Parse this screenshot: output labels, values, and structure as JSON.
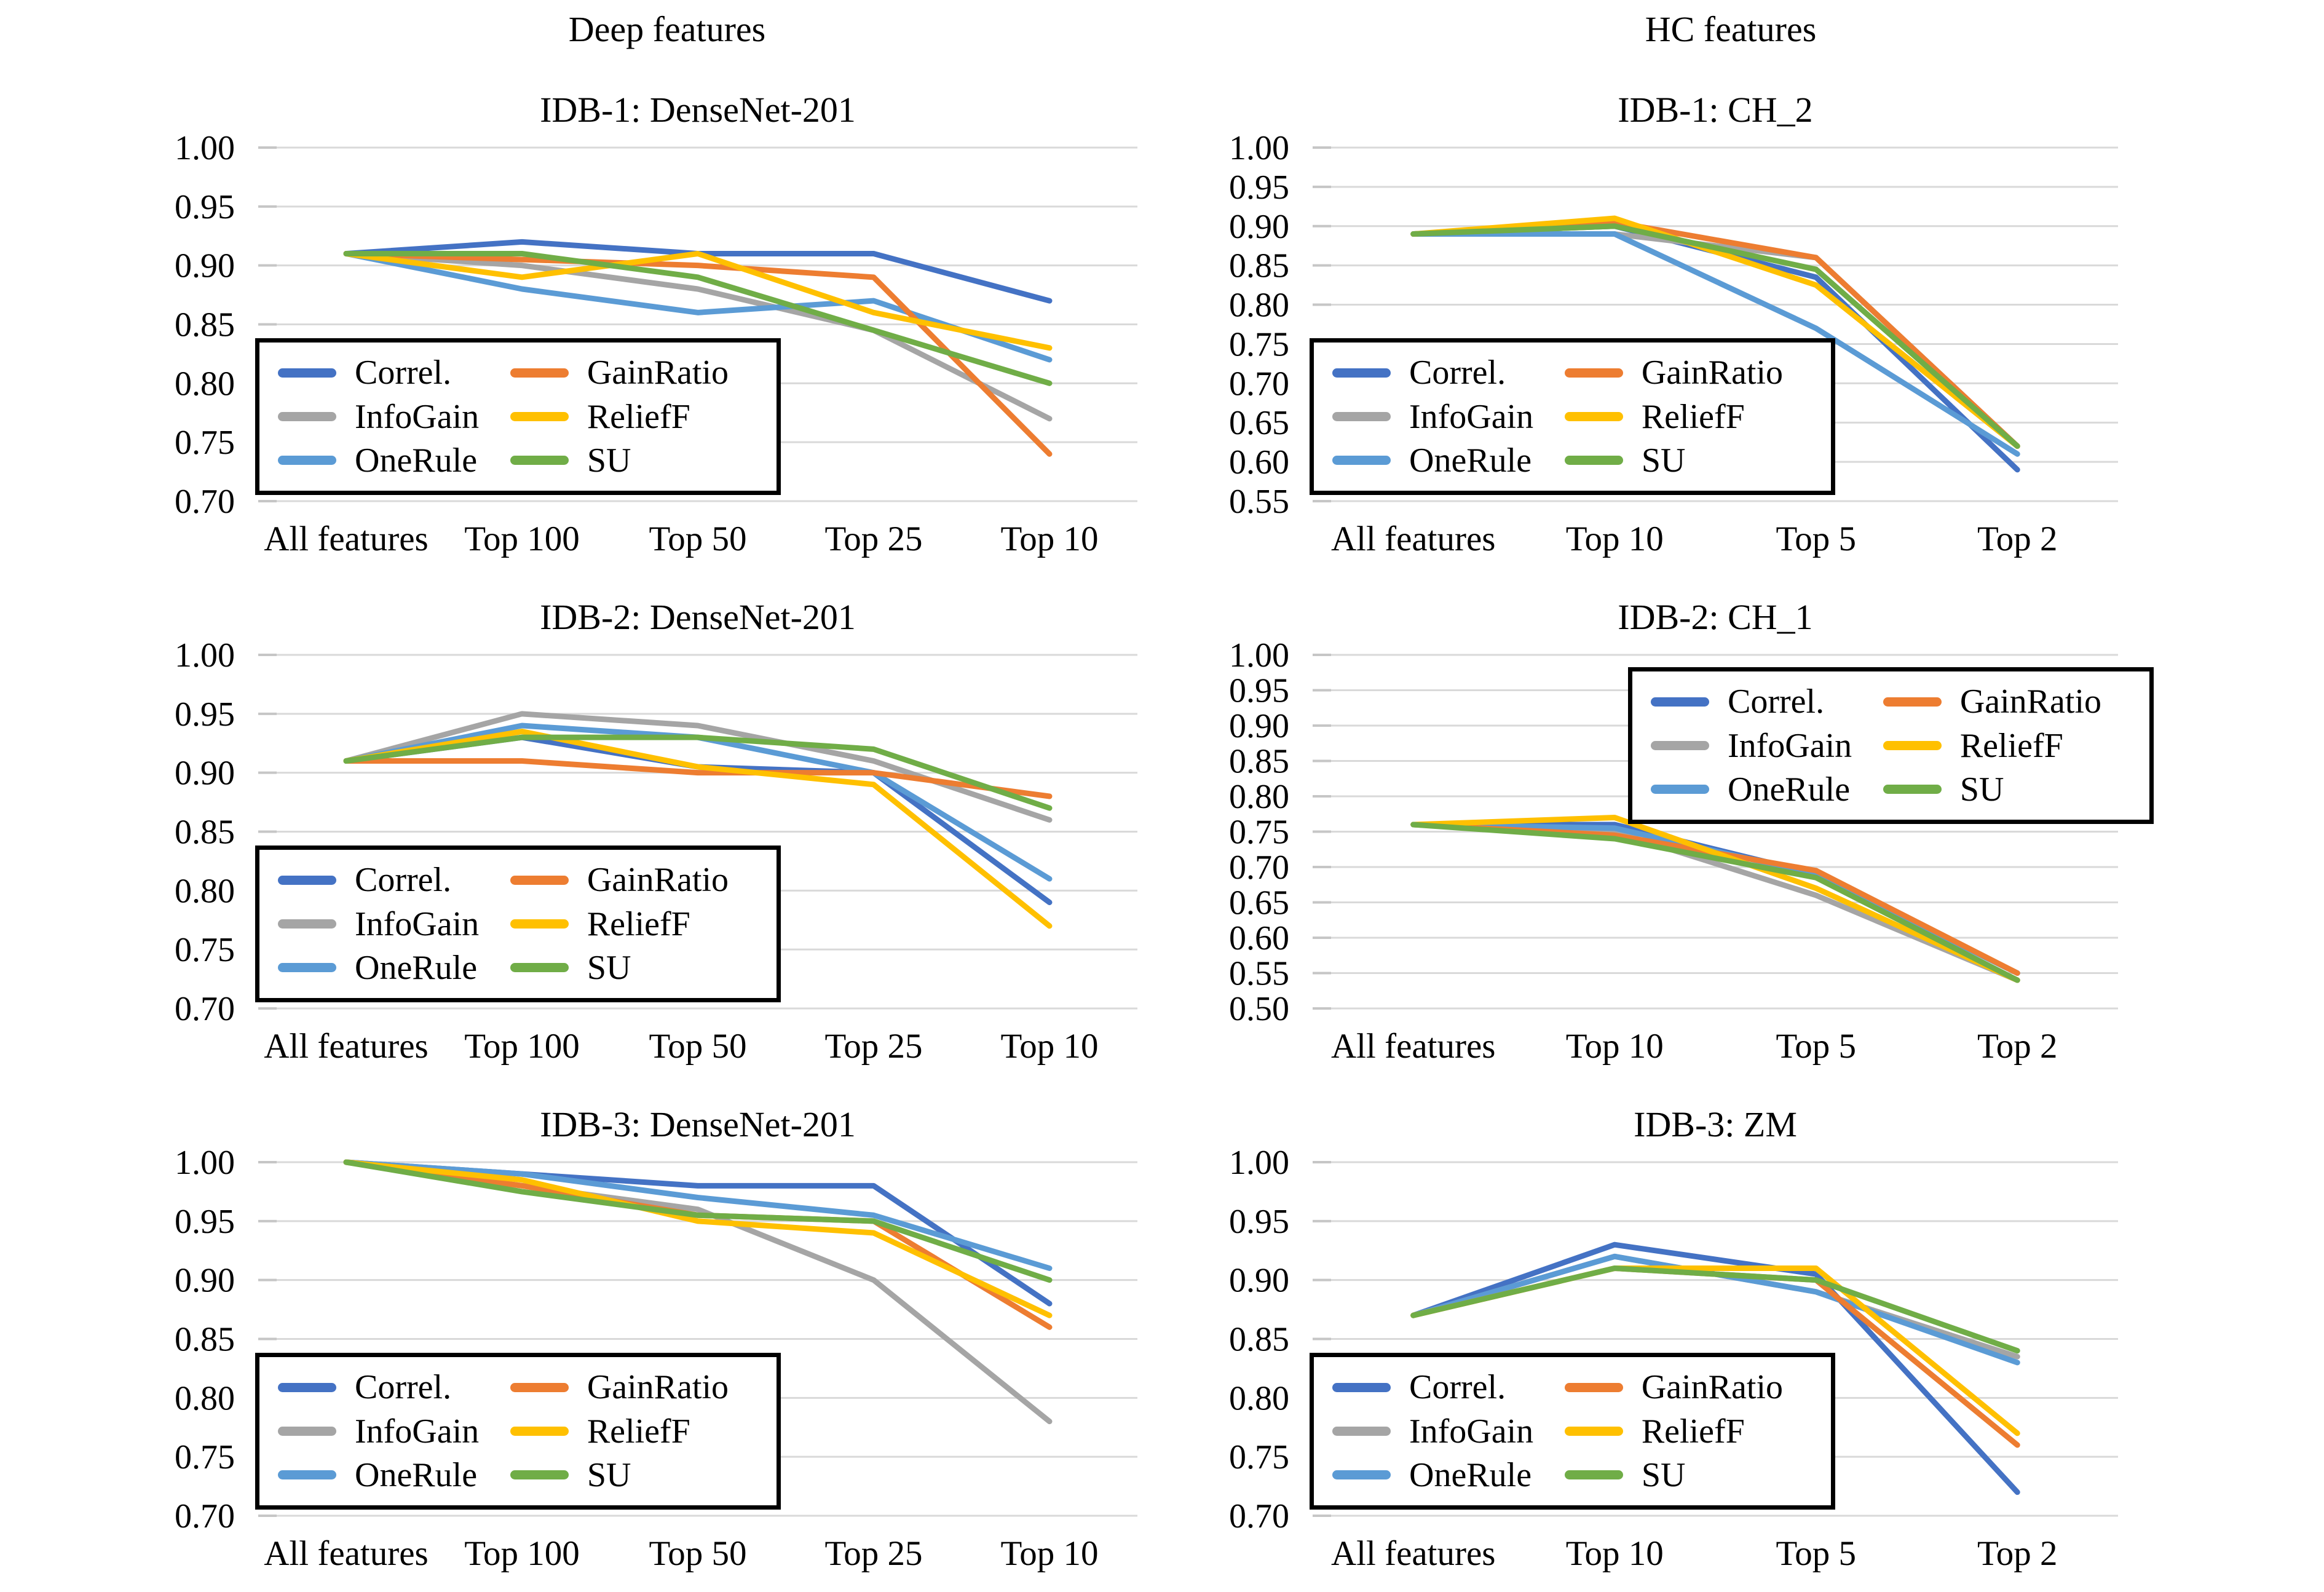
{
  "page": {
    "background": "#ffffff"
  },
  "headers": [
    {
      "label": "Deep features"
    },
    {
      "label": "HC features"
    }
  ],
  "legend": {
    "items": [
      {
        "label": "Correl.",
        "color": "#4472C4"
      },
      {
        "label": "InfoGain",
        "color": "#A5A5A5"
      },
      {
        "label": "OneRule",
        "color": "#5B9BD5"
      },
      {
        "label": "GainRatio",
        "color": "#ED7D31"
      },
      {
        "label": "ReliefF",
        "color": "#FFC000"
      },
      {
        "label": "SU",
        "color": "#70AD47"
      }
    ]
  },
  "chart_data": [
    {
      "type": "line",
      "title": "IDB-1: DenseNet-201",
      "column": "Deep features",
      "categories": [
        "All features",
        "Top 100",
        "Top 50",
        "Top 25",
        "Top 10"
      ],
      "ylim": [
        0.7,
        1.0
      ],
      "yticks": [
        "1.00",
        "0.95",
        "0.90",
        "0.85",
        "0.80",
        "0.75",
        "0.70"
      ],
      "grid": "horizontal",
      "legend_position": "bottom-left",
      "series": [
        {
          "name": "Correl.",
          "values": [
            0.91,
            0.92,
            0.91,
            0.91,
            0.87
          ]
        },
        {
          "name": "InfoGain",
          "values": [
            0.91,
            0.9,
            0.88,
            0.845,
            0.77
          ]
        },
        {
          "name": "OneRule",
          "values": [
            0.91,
            0.88,
            0.86,
            0.87,
            0.82
          ]
        },
        {
          "name": "GainRatio",
          "values": [
            0.91,
            0.905,
            0.9,
            0.89,
            0.74
          ]
        },
        {
          "name": "ReliefF",
          "values": [
            0.91,
            0.89,
            0.91,
            0.86,
            0.83
          ]
        },
        {
          "name": "SU",
          "values": [
            0.91,
            0.91,
            0.89,
            0.845,
            0.8
          ]
        }
      ]
    },
    {
      "type": "line",
      "title": "IDB-1: CH_2",
      "column": "HC features",
      "categories": [
        "All features",
        "Top 10",
        "Top 5",
        "Top 2"
      ],
      "ylim": [
        0.55,
        1.0
      ],
      "yticks": [
        "1.00",
        "0.95",
        "0.90",
        "0.85",
        "0.80",
        "0.75",
        "0.70",
        "0.65",
        "0.60",
        "0.55"
      ],
      "grid": "horizontal",
      "legend_position": "bottom-left",
      "series": [
        {
          "name": "Correl.",
          "values": [
            0.89,
            0.9,
            0.835,
            0.59
          ]
        },
        {
          "name": "InfoGain",
          "values": [
            0.89,
            0.89,
            0.86,
            0.62
          ]
        },
        {
          "name": "OneRule",
          "values": [
            0.89,
            0.89,
            0.77,
            0.61
          ]
        },
        {
          "name": "GainRatio",
          "values": [
            0.89,
            0.905,
            0.86,
            0.62
          ]
        },
        {
          "name": "ReliefF",
          "values": [
            0.89,
            0.91,
            0.825,
            0.62
          ]
        },
        {
          "name": "SU",
          "values": [
            0.89,
            0.9,
            0.845,
            0.62
          ]
        }
      ]
    },
    {
      "type": "line",
      "title": "IDB-2: DenseNet-201",
      "column": "Deep features",
      "categories": [
        "All features",
        "Top 100",
        "Top 50",
        "Top 25",
        "Top 10"
      ],
      "ylim": [
        0.7,
        1.0
      ],
      "yticks": [
        "1.00",
        "0.95",
        "0.90",
        "0.85",
        "0.80",
        "0.75",
        "0.70"
      ],
      "grid": "horizontal",
      "legend_position": "bottom-left",
      "series": [
        {
          "name": "Correl.",
          "values": [
            0.91,
            0.93,
            0.905,
            0.9,
            0.79
          ]
        },
        {
          "name": "InfoGain",
          "values": [
            0.91,
            0.95,
            0.94,
            0.91,
            0.86
          ]
        },
        {
          "name": "OneRule",
          "values": [
            0.91,
            0.94,
            0.93,
            0.9,
            0.81
          ]
        },
        {
          "name": "GainRatio",
          "values": [
            0.91,
            0.91,
            0.9,
            0.9,
            0.88
          ]
        },
        {
          "name": "ReliefF",
          "values": [
            0.91,
            0.935,
            0.905,
            0.89,
            0.77
          ]
        },
        {
          "name": "SU",
          "values": [
            0.91,
            0.93,
            0.93,
            0.92,
            0.87
          ]
        }
      ]
    },
    {
      "type": "line",
      "title": "IDB-2: CH_1",
      "column": "HC features",
      "categories": [
        "All features",
        "Top 10",
        "Top 5",
        "Top 2"
      ],
      "ylim": [
        0.5,
        1.0
      ],
      "yticks": [
        "1.00",
        "0.95",
        "0.90",
        "0.85",
        "0.80",
        "0.75",
        "0.70",
        "0.65",
        "0.60",
        "0.55",
        "0.50"
      ],
      "grid": "horizontal",
      "legend_position": "top-right",
      "series": [
        {
          "name": "Correl.",
          "values": [
            0.76,
            0.76,
            0.69,
            0.55
          ]
        },
        {
          "name": "InfoGain",
          "values": [
            0.76,
            0.75,
            0.66,
            0.54
          ]
        },
        {
          "name": "OneRule",
          "values": [
            0.76,
            0.755,
            0.69,
            0.55
          ]
        },
        {
          "name": "GainRatio",
          "values": [
            0.76,
            0.745,
            0.695,
            0.55
          ]
        },
        {
          "name": "ReliefF",
          "values": [
            0.76,
            0.77,
            0.67,
            0.54
          ]
        },
        {
          "name": "SU",
          "values": [
            0.76,
            0.74,
            0.685,
            0.54
          ]
        }
      ]
    },
    {
      "type": "line",
      "title": "IDB-3: DenseNet-201",
      "column": "Deep features",
      "categories": [
        "All features",
        "Top 100",
        "Top 50",
        "Top 25",
        "Top 10"
      ],
      "ylim": [
        0.7,
        1.0
      ],
      "yticks": [
        "1.00",
        "0.95",
        "0.90",
        "0.85",
        "0.80",
        "0.75",
        "0.70"
      ],
      "grid": "horizontal",
      "legend_position": "bottom-left",
      "series": [
        {
          "name": "Correl.",
          "values": [
            1.0,
            0.99,
            0.98,
            0.98,
            0.88
          ]
        },
        {
          "name": "InfoGain",
          "values": [
            1.0,
            0.98,
            0.96,
            0.9,
            0.78
          ]
        },
        {
          "name": "OneRule",
          "values": [
            1.0,
            0.99,
            0.97,
            0.955,
            0.91
          ]
        },
        {
          "name": "GainRatio",
          "values": [
            1.0,
            0.98,
            0.955,
            0.95,
            0.86
          ]
        },
        {
          "name": "ReliefF",
          "values": [
            1.0,
            0.985,
            0.95,
            0.94,
            0.87
          ]
        },
        {
          "name": "SU",
          "values": [
            1.0,
            0.975,
            0.955,
            0.95,
            0.9
          ]
        }
      ]
    },
    {
      "type": "line",
      "title": "IDB-3: ZM",
      "column": "HC features",
      "categories": [
        "All features",
        "Top 10",
        "Top 5",
        "Top 2"
      ],
      "ylim": [
        0.7,
        1.0
      ],
      "yticks": [
        "1.00",
        "0.95",
        "0.90",
        "0.85",
        "0.80",
        "0.75",
        "0.70"
      ],
      "grid": "horizontal",
      "legend_position": "bottom-left",
      "series": [
        {
          "name": "Correl.",
          "values": [
            0.87,
            0.93,
            0.905,
            0.72
          ]
        },
        {
          "name": "InfoGain",
          "values": [
            0.87,
            0.92,
            0.89,
            0.835
          ]
        },
        {
          "name": "OneRule",
          "values": [
            0.87,
            0.92,
            0.89,
            0.83
          ]
        },
        {
          "name": "GainRatio",
          "values": [
            0.87,
            0.91,
            0.9,
            0.76
          ]
        },
        {
          "name": "ReliefF",
          "values": [
            0.87,
            0.91,
            0.91,
            0.77
          ]
        },
        {
          "name": "SU",
          "values": [
            0.87,
            0.91,
            0.9,
            0.84
          ]
        }
      ]
    }
  ]
}
